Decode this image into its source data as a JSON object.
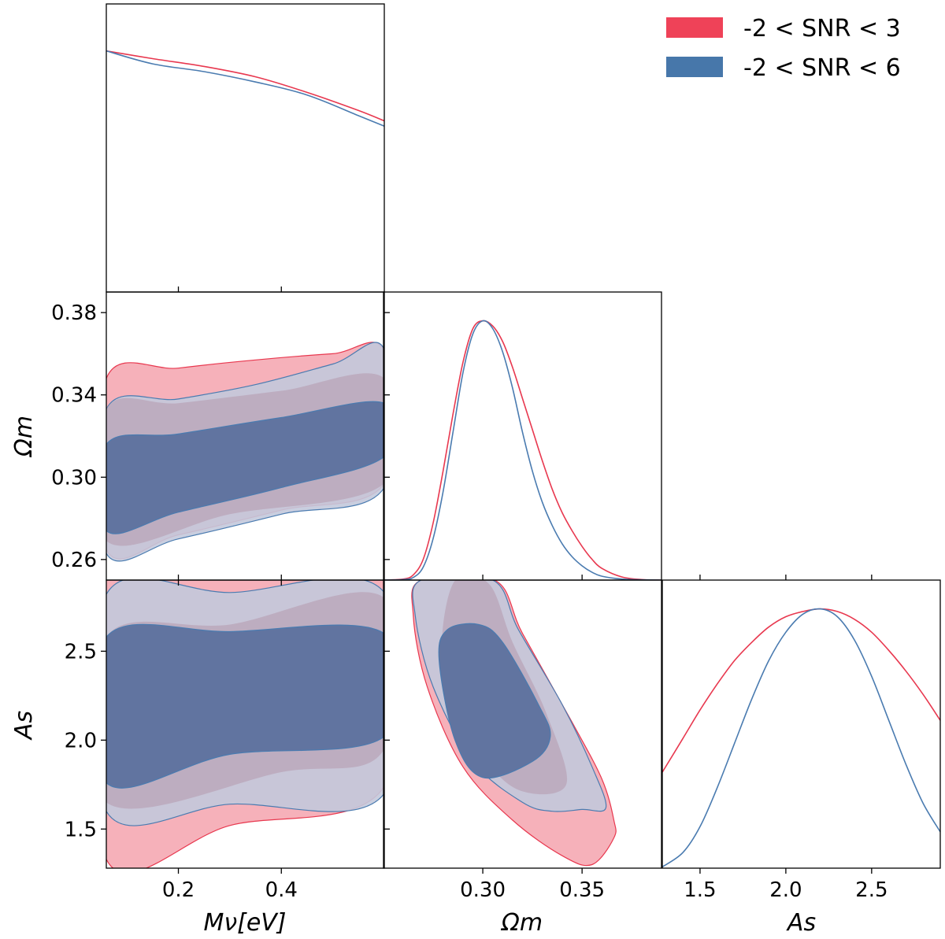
{
  "colors": {
    "red_line": "#e8384f",
    "red_fill": "#f5a3ae",
    "blue_line": "#4a7bb0",
    "blue_fill": "#c3c9db",
    "blue_core": "#6174a0",
    "legend_red": "#ef4258",
    "legend_blue": "#4777aa"
  },
  "legend": {
    "location": "top-right",
    "entries": [
      {
        "label": "-2 < SNR < 3",
        "color": "#ef4258"
      },
      {
        "label": "-2 < SNR < 6",
        "color": "#4777aa"
      }
    ]
  },
  "axes_labels": {
    "mnu": "Mν[eV]",
    "omega": "Ωm",
    "as": "As"
  },
  "chart_data": {
    "type": "corner",
    "parameters": [
      "Mν[eV]",
      "Ωm",
      "As"
    ],
    "ranges": {
      "mnu": [
        0.06,
        0.6
      ],
      "omega": [
        0.25,
        0.39
      ],
      "as": [
        1.28,
        2.9
      ]
    },
    "ticks": {
      "mnu": [
        {
          "v": 0.2,
          "label": "0.2"
        },
        {
          "v": 0.4,
          "label": "0.4"
        }
      ],
      "omega": [
        {
          "v": 0.26,
          "label": "0.26"
        },
        {
          "v": 0.3,
          "label": "0.30"
        },
        {
          "v": 0.34,
          "label": "0.34"
        },
        {
          "v": 0.38,
          "label": "0.38"
        }
      ],
      "omega_x": [
        {
          "v": 0.3,
          "label": "0.30"
        },
        {
          "v": 0.35,
          "label": "0.35"
        }
      ],
      "as": [
        {
          "v": 1.5,
          "label": "1.5"
        },
        {
          "v": 2.0,
          "label": "2.0"
        },
        {
          "v": 2.5,
          "label": "2.5"
        }
      ]
    },
    "marginals": {
      "mnu": {
        "x": [
          0.06,
          0.15,
          0.25,
          0.35,
          0.45,
          0.55,
          0.6
        ],
        "series": [
          {
            "name": "-2 < SNR < 3",
            "values": [
              0.93,
              0.9,
              0.87,
              0.83,
              0.77,
              0.7,
              0.66
            ]
          },
          {
            "name": "-2 < SNR < 6",
            "values": [
              0.93,
              0.88,
              0.85,
              0.81,
              0.76,
              0.68,
              0.64
            ]
          }
        ]
      },
      "omega": {
        "x": [
          0.25,
          0.26,
          0.265,
          0.27,
          0.275,
          0.28,
          0.285,
          0.29,
          0.295,
          0.3,
          0.305,
          0.31,
          0.315,
          0.32,
          0.325,
          0.33,
          0.335,
          0.34,
          0.345,
          0.35,
          0.355,
          0.36,
          0.37,
          0.38,
          0.39
        ],
        "series": [
          {
            "name": "-2 < SNR < 3",
            "values": [
              0.0,
              0.004,
              0.02,
              0.08,
              0.22,
              0.42,
              0.64,
              0.84,
              0.97,
              1.0,
              0.98,
              0.92,
              0.82,
              0.7,
              0.58,
              0.46,
              0.35,
              0.26,
              0.19,
              0.13,
              0.08,
              0.045,
              0.012,
              0.002,
              0.0
            ]
          },
          {
            "name": "-2 < SNR < 6",
            "values": [
              0.0,
              0.002,
              0.01,
              0.05,
              0.16,
              0.34,
              0.57,
              0.8,
              0.95,
              1.0,
              0.97,
              0.88,
              0.74,
              0.57,
              0.42,
              0.3,
              0.21,
              0.14,
              0.09,
              0.055,
              0.03,
              0.015,
              0.004,
              0.001,
              0.0
            ]
          }
        ]
      },
      "as": {
        "x": [
          1.28,
          1.4,
          1.5,
          1.6,
          1.7,
          1.8,
          1.9,
          2.0,
          2.1,
          2.2,
          2.3,
          2.4,
          2.5,
          2.6,
          2.7,
          2.8,
          2.9
        ],
        "series": [
          {
            "name": "-2 < SNR < 3",
            "values": [
              0.37,
              0.5,
              0.61,
              0.71,
              0.8,
              0.87,
              0.93,
              0.97,
              0.99,
              1.0,
              0.99,
              0.96,
              0.91,
              0.84,
              0.76,
              0.67,
              0.57
            ]
          },
          {
            "name": "-2 < SNR < 6",
            "values": [
              0.005,
              0.06,
              0.16,
              0.31,
              0.48,
              0.65,
              0.8,
              0.91,
              0.98,
              1.0,
              0.97,
              0.88,
              0.74,
              0.57,
              0.4,
              0.25,
              0.14
            ]
          }
        ]
      }
    },
    "contours": {
      "mnu_omega": {
        "snr3_outer": [
          [
            0.06,
            0.348
          ],
          [
            0.2,
            0.353
          ],
          [
            0.35,
            0.357
          ],
          [
            0.5,
            0.36
          ],
          [
            0.6,
            0.361
          ],
          [
            0.6,
            0.297
          ],
          [
            0.4,
            0.284
          ],
          [
            0.2,
            0.272
          ],
          [
            0.06,
            0.265
          ]
        ],
        "snr6_outer": [
          [
            0.06,
            0.333
          ],
          [
            0.2,
            0.338
          ],
          [
            0.35,
            0.345
          ],
          [
            0.5,
            0.355
          ],
          [
            0.6,
            0.362
          ],
          [
            0.6,
            0.295
          ],
          [
            0.4,
            0.282
          ],
          [
            0.2,
            0.27
          ],
          [
            0.06,
            0.263
          ]
        ],
        "snr3_inner": [
          [
            0.06,
            0.333
          ],
          [
            0.2,
            0.336
          ],
          [
            0.4,
            0.342
          ],
          [
            0.6,
            0.348
          ],
          [
            0.6,
            0.297
          ],
          [
            0.3,
            0.282
          ],
          [
            0.06,
            0.269
          ]
        ],
        "snr6_inner": [
          [
            0.06,
            0.316
          ],
          [
            0.2,
            0.321
          ],
          [
            0.4,
            0.329
          ],
          [
            0.6,
            0.336
          ],
          [
            0.6,
            0.31
          ],
          [
            0.4,
            0.295
          ],
          [
            0.2,
            0.283
          ],
          [
            0.06,
            0.274
          ]
        ]
      },
      "mnu_as": {
        "snr3_outer": [
          [
            0.06,
            2.9
          ],
          [
            0.6,
            2.9
          ],
          [
            0.6,
            1.74
          ],
          [
            0.3,
            1.52
          ],
          [
            0.06,
            1.33
          ]
        ],
        "snr6_outer": [
          [
            0.06,
            2.82
          ],
          [
            0.3,
            2.83
          ],
          [
            0.6,
            2.83
          ],
          [
            0.6,
            1.7
          ],
          [
            0.3,
            1.64
          ],
          [
            0.06,
            1.6
          ]
        ],
        "snr3_inner": [
          [
            0.06,
            2.58
          ],
          [
            0.3,
            2.65
          ],
          [
            0.6,
            2.8
          ],
          [
            0.6,
            1.95
          ],
          [
            0.4,
            1.82
          ],
          [
            0.06,
            1.65
          ]
        ],
        "snr6_inner": [
          [
            0.06,
            2.58
          ],
          [
            0.3,
            2.61
          ],
          [
            0.6,
            2.6
          ],
          [
            0.6,
            2.02
          ],
          [
            0.3,
            1.92
          ],
          [
            0.06,
            1.76
          ]
        ]
      },
      "omega_as": {
        "snr3_outer": [
          [
            0.269,
            2.9
          ],
          [
            0.306,
            2.9
          ],
          [
            0.32,
            2.6
          ],
          [
            0.345,
            2.1
          ],
          [
            0.36,
            1.78
          ],
          [
            0.366,
            1.55
          ],
          [
            0.366,
            1.45
          ],
          [
            0.355,
            1.3
          ],
          [
            0.34,
            1.35
          ],
          [
            0.315,
            1.55
          ],
          [
            0.29,
            1.85
          ],
          [
            0.272,
            2.3
          ],
          [
            0.265,
            2.7
          ]
        ],
        "snr6_outer": [
          [
            0.269,
            2.9
          ],
          [
            0.305,
            2.9
          ],
          [
            0.318,
            2.62
          ],
          [
            0.34,
            2.2
          ],
          [
            0.355,
            1.85
          ],
          [
            0.362,
            1.62
          ],
          [
            0.35,
            1.61
          ],
          [
            0.335,
            1.6
          ],
          [
            0.32,
            1.65
          ],
          [
            0.295,
            1.88
          ],
          [
            0.275,
            2.3
          ],
          [
            0.266,
            2.7
          ]
        ],
        "snr3_inner": [
          [
            0.285,
            2.88
          ],
          [
            0.303,
            2.88
          ],
          [
            0.315,
            2.55
          ],
          [
            0.332,
            2.15
          ],
          [
            0.342,
            1.75
          ],
          [
            0.318,
            1.72
          ],
          [
            0.298,
            1.95
          ],
          [
            0.28,
            2.4
          ]
        ],
        "snr6_inner": [
          [
            0.282,
            2.62
          ],
          [
            0.298,
            2.65
          ],
          [
            0.31,
            2.55
          ],
          [
            0.328,
            2.2
          ],
          [
            0.334,
            2.02
          ],
          [
            0.325,
            1.88
          ],
          [
            0.3,
            1.79
          ],
          [
            0.286,
            2.0
          ],
          [
            0.278,
            2.45
          ]
        ]
      }
    }
  }
}
